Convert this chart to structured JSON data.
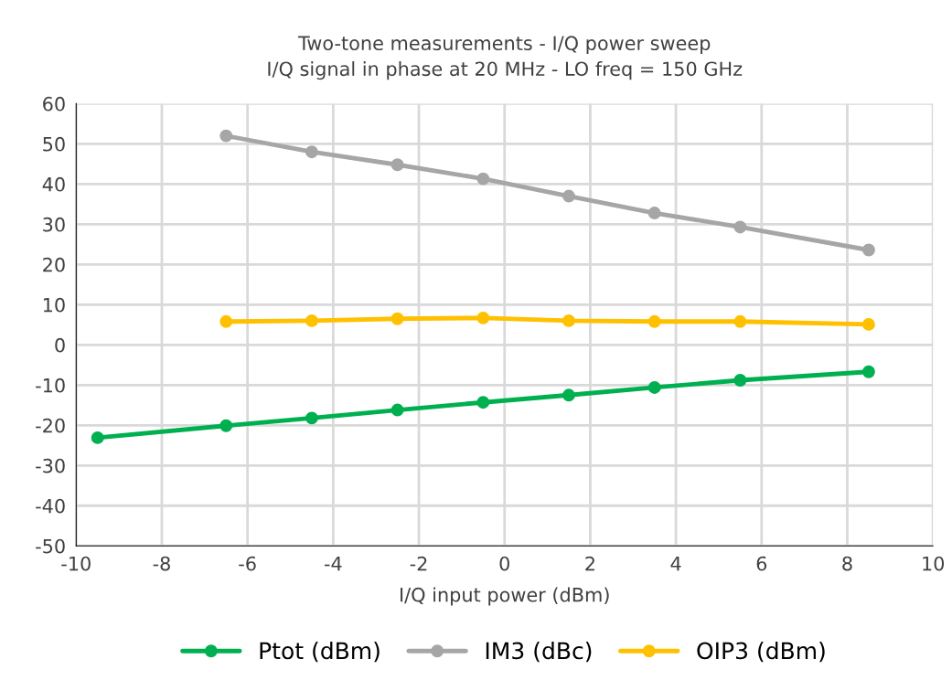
{
  "chart_data": {
    "type": "line",
    "title": "Two-tone measurements - I/Q power sweep\nI/Q signal in phase at 20 MHz - LO freq = 150 GHz",
    "xlabel": "I/Q input power (dBm)",
    "series": [
      {
        "name": "Ptot (dBm)",
        "color": "#00b050",
        "x": [
          -9.5,
          -6.5,
          -4.5,
          -2.5,
          -0.5,
          1.5,
          3.5,
          5.5,
          8.5
        ],
        "values": [
          -23.1,
          -20.1,
          -18.2,
          -16.2,
          -14.3,
          -12.5,
          -10.6,
          -8.8,
          -6.7
        ]
      },
      {
        "name": "IM3 (dBc)",
        "color": "#a6a6a6",
        "x": [
          -6.5,
          -4.5,
          -2.5,
          -0.5,
          1.5,
          3.5,
          5.5,
          8.5
        ],
        "values": [
          52.0,
          48.0,
          44.8,
          41.3,
          37.0,
          32.8,
          29.3,
          23.6
        ]
      },
      {
        "name": "OIP3 (dBm)",
        "color": "#ffc000",
        "x": [
          -6.5,
          -4.5,
          -2.5,
          -0.5,
          1.5,
          3.5,
          5.5,
          8.5
        ],
        "values": [
          5.8,
          6.0,
          6.5,
          6.7,
          6.0,
          5.8,
          5.8,
          5.1
        ]
      }
    ],
    "xlim": [
      -10,
      10
    ],
    "xticks": [
      -10,
      -8,
      -6,
      -4,
      -2,
      0,
      2,
      4,
      6,
      8,
      10
    ],
    "ylim": [
      -50,
      60
    ],
    "yticks": [
      -50,
      -40,
      -30,
      -20,
      -10,
      0,
      10,
      20,
      30,
      40,
      50,
      60
    ],
    "grid": true,
    "legend": "bottom",
    "marker": "circle",
    "line_style": "solid"
  }
}
